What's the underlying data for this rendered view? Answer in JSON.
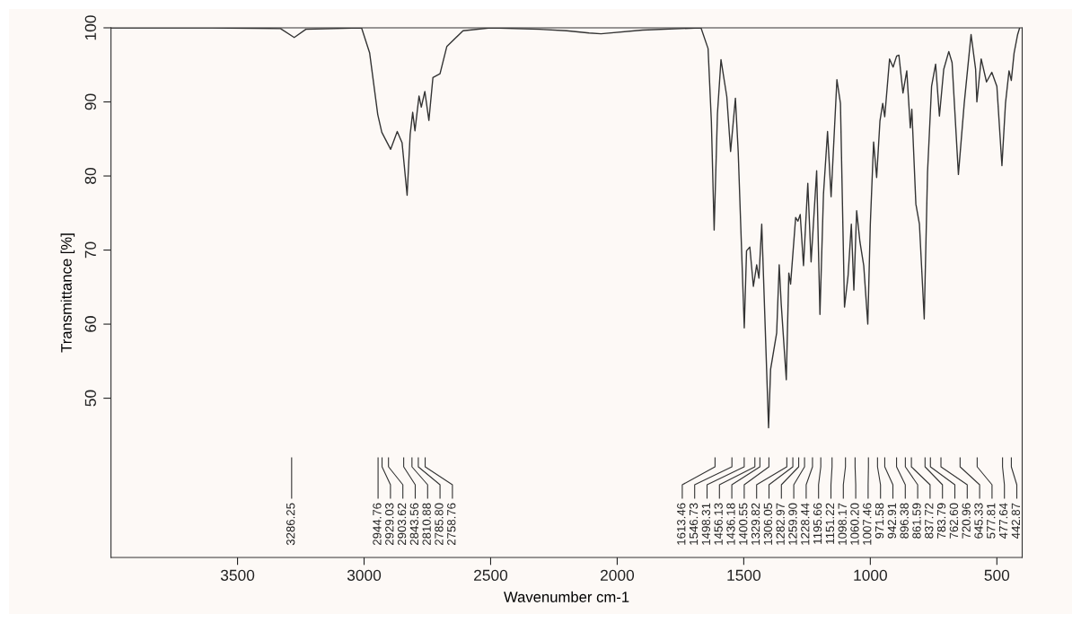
{
  "chart_data": {
    "type": "line",
    "xlabel": "Wavenumber cm-1",
    "ylabel": "Transmittance [%]",
    "xlim": [
      4000,
      400
    ],
    "ylim": [
      28.5,
      100
    ],
    "xticks": [
      3500,
      3000,
      2500,
      2000,
      1500,
      1000,
      500
    ],
    "yticks": [
      50,
      60,
      70,
      80,
      90,
      100
    ],
    "grid": false,
    "legend": false,
    "marker": "none",
    "line_style": "solid",
    "series": [
      {
        "color": "#333333",
        "x": [
          4000,
          3600,
          3330,
          3276,
          3230,
          3010,
          2978,
          2946,
          2930,
          2895,
          2869,
          2850,
          2830,
          2818,
          2808,
          2799,
          2783,
          2774,
          2760,
          2744,
          2728,
          2700,
          2673,
          2609,
          2500,
          2307,
          2200,
          2111,
          2064,
          1900,
          1669,
          1641,
          1628,
          1617,
          1604,
          1590,
          1567,
          1552,
          1533,
          1522,
          1498,
          1489,
          1476,
          1462,
          1449,
          1440,
          1429,
          1417,
          1402,
          1394,
          1370,
          1360,
          1352,
          1332,
          1322,
          1315,
          1295,
          1286,
          1277,
          1264,
          1247,
          1234,
          1212,
          1199,
          1185,
          1169,
          1155,
          1132,
          1118,
          1102,
          1088,
          1075,
          1065,
          1054,
          1041,
          1026,
          1010,
          1000,
          987,
          975,
          962,
          951,
          943,
          924,
          910,
          896,
          887,
          871,
          856,
          842,
          836,
          820,
          806,
          787,
          774,
          758,
          742,
          727,
          710,
          690,
          677,
          652,
          629,
          602,
          584,
          579,
          562,
          541,
          520,
          500,
          480,
          466,
          452,
          443,
          432,
          418,
          410
        ],
        "values": [
          100,
          100,
          99.9,
          98.7,
          99.8,
          100,
          96.6,
          88.3,
          85.9,
          83.6,
          86,
          84.5,
          77.4,
          85.6,
          88.6,
          86.1,
          90.8,
          89.3,
          91.4,
          87.5,
          93.3,
          93.8,
          97.5,
          99.6,
          100,
          99.8,
          99.6,
          99.3,
          99.2,
          99.7,
          100,
          97.2,
          87.4,
          72.7,
          88.4,
          95.7,
          90.7,
          83.3,
          90.5,
          83.3,
          59.5,
          69.9,
          70.4,
          65.1,
          68,
          66.2,
          73.5,
          61.3,
          46,
          53.9,
          58.8,
          68,
          62.7,
          52.5,
          66.9,
          65.4,
          74.4,
          73.9,
          74.8,
          67.9,
          79,
          68.4,
          80.7,
          61.3,
          77.6,
          86,
          77.2,
          93,
          89.8,
          62.3,
          66.5,
          73.5,
          64.6,
          75.3,
          71.1,
          67.9,
          60,
          73.5,
          84.6,
          79.8,
          87.4,
          89.8,
          88,
          95.8,
          94.7,
          96.2,
          96.3,
          91.2,
          94.2,
          86.5,
          89,
          76.2,
          73.5,
          60.7,
          80.5,
          92.1,
          95.1,
          88.1,
          94.4,
          96.8,
          95.3,
          80.2,
          89.8,
          99.1,
          94.4,
          90,
          95.8,
          92.7,
          94,
          92.1,
          81.4,
          89.8,
          94.2,
          92.9,
          96.6,
          99.1,
          100
        ]
      }
    ],
    "annotations": [
      {
        "text": "3286.25",
        "x": 3286.25
      },
      {
        "text": "2944.76",
        "x": 2944.76
      },
      {
        "text": "2929.03",
        "x": 2929.03
      },
      {
        "text": "2903.62",
        "x": 2903.62
      },
      {
        "text": "2843.56",
        "x": 2843.56
      },
      {
        "text": "2810.88",
        "x": 2810.88
      },
      {
        "text": "2785.80",
        "x": 2785.8
      },
      {
        "text": "2758.76",
        "x": 2758.76
      },
      {
        "text": "1613.46",
        "x": 1613.46
      },
      {
        "text": "1546.73",
        "x": 1546.73
      },
      {
        "text": "1498.31",
        "x": 1498.31
      },
      {
        "text": "1456.13",
        "x": 1456.13
      },
      {
        "text": "1436.18",
        "x": 1436.18
      },
      {
        "text": "1400.55",
        "x": 1400.55
      },
      {
        "text": "1329.82",
        "x": 1329.82
      },
      {
        "text": "1306.05",
        "x": 1306.05
      },
      {
        "text": "1282.97",
        "x": 1282.97
      },
      {
        "text": "1259.90",
        "x": 1259.9
      },
      {
        "text": "1228.44",
        "x": 1228.44
      },
      {
        "text": "1195.66",
        "x": 1195.66
      },
      {
        "text": "1151.22",
        "x": 1151.22
      },
      {
        "text": "1098.17",
        "x": 1098.17
      },
      {
        "text": "1060.20",
        "x": 1060.2
      },
      {
        "text": "1007.46",
        "x": 1007.46
      },
      {
        "text": "971.58",
        "x": 971.58
      },
      {
        "text": "942.91",
        "x": 942.91
      },
      {
        "text": "896.38",
        "x": 896.38
      },
      {
        "text": "861.59",
        "x": 861.59
      },
      {
        "text": "837.72",
        "x": 837.72
      },
      {
        "text": "783.79",
        "x": 783.79
      },
      {
        "text": "762.60",
        "x": 762.6
      },
      {
        "text": "720.96",
        "x": 720.96
      },
      {
        "text": "645.33",
        "x": 645.33
      },
      {
        "text": "577.81",
        "x": 577.81
      },
      {
        "text": "477.64",
        "x": 477.64
      },
      {
        "text": "442.87",
        "x": 442.87
      }
    ]
  }
}
